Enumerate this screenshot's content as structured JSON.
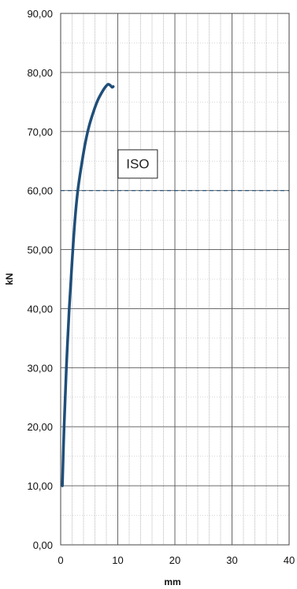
{
  "chart_data": {
    "type": "line",
    "title": "",
    "xlabel": "mm",
    "ylabel": "kN",
    "xlim": [
      0,
      40
    ],
    "ylim": [
      0,
      90
    ],
    "x_ticks": [
      0,
      10,
      20,
      30,
      40
    ],
    "x_tick_labels": [
      "0",
      "10",
      "20",
      "30",
      "40"
    ],
    "y_ticks": [
      0,
      10,
      20,
      30,
      40,
      50,
      60,
      70,
      80,
      90
    ],
    "y_tick_labels": [
      "0,00",
      "10,00",
      "20,00",
      "30,00",
      "40,00",
      "50,00",
      "60,00",
      "70,00",
      "80,00",
      "90,00"
    ],
    "grid": true,
    "series": [
      {
        "color": "#1f4e79",
        "x": [
          0.3,
          0.6,
          1.0,
          1.5,
          2.0,
          2.5,
          3.0,
          3.6,
          4.3,
          5.0,
          5.8,
          6.5,
          7.2,
          7.8,
          8.3,
          8.7,
          9.0,
          9.2
        ],
        "y": [
          10,
          20,
          30,
          40,
          48,
          55,
          60,
          64,
          68,
          71,
          73.5,
          75.3,
          76.6,
          77.5,
          78.0,
          77.8,
          77.5,
          77.6
        ]
      }
    ],
    "reference_line": {
      "y": 60,
      "color": "#1f4e79",
      "style": "dashed"
    },
    "annotation": {
      "text": "ISO",
      "x": 13.5,
      "y": 64.5
    }
  }
}
